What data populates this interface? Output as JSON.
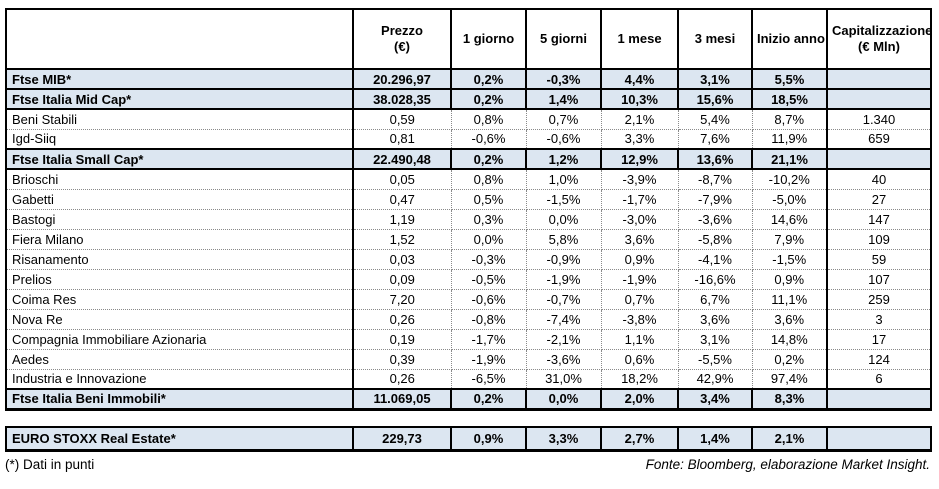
{
  "chart_data": {
    "type": "table",
    "title": "",
    "headers": [
      {
        "label": "Prezzo",
        "sub": "(€)"
      },
      {
        "label": "1 giorno",
        "sub": ""
      },
      {
        "label": "5 giorni",
        "sub": ""
      },
      {
        "label": "1 mese",
        "sub": ""
      },
      {
        "label": "3 mesi",
        "sub": ""
      },
      {
        "label": "Inizio anno",
        "sub": ""
      },
      {
        "label": "Capitalizzazione",
        "sub": "(€ Mln)"
      }
    ],
    "rows": [
      {
        "label": "Ftse MIB*",
        "style": "index",
        "values": [
          "20.296,97",
          "0,2%",
          "-0,3%",
          "4,4%",
          "3,1%",
          "5,5%",
          ""
        ]
      },
      {
        "label": "Ftse Italia Mid Cap*",
        "style": "index",
        "values": [
          "38.028,35",
          "0,2%",
          "1,4%",
          "10,3%",
          "15,6%",
          "18,5%",
          ""
        ]
      },
      {
        "label": "Beni Stabili",
        "style": "company",
        "values": [
          "0,59",
          "0,8%",
          "0,7%",
          "2,1%",
          "5,4%",
          "8,7%",
          "1.340"
        ]
      },
      {
        "label": "Igd-Siiq",
        "style": "company",
        "values": [
          "0,81",
          "-0,6%",
          "-0,6%",
          "3,3%",
          "7,6%",
          "11,9%",
          "659"
        ]
      },
      {
        "label": "Ftse Italia Small Cap*",
        "style": "index",
        "values": [
          "22.490,48",
          "0,2%",
          "1,2%",
          "12,9%",
          "13,6%",
          "21,1%",
          ""
        ]
      },
      {
        "label": "Brioschi",
        "style": "company",
        "values": [
          "0,05",
          "0,8%",
          "1,0%",
          "-3,9%",
          "-8,7%",
          "-10,2%",
          "40"
        ]
      },
      {
        "label": "Gabetti",
        "style": "company",
        "values": [
          "0,47",
          "0,5%",
          "-1,5%",
          "-1,7%",
          "-7,9%",
          "-5,0%",
          "27"
        ]
      },
      {
        "label": "Bastogi",
        "style": "company",
        "values": [
          "1,19",
          "0,3%",
          "0,0%",
          "-3,0%",
          "-3,6%",
          "14,6%",
          "147"
        ]
      },
      {
        "label": "Fiera Milano",
        "style": "company",
        "values": [
          "1,52",
          "0,0%",
          "5,8%",
          "3,6%",
          "-5,8%",
          "7,9%",
          "109"
        ]
      },
      {
        "label": "Risanamento",
        "style": "company",
        "values": [
          "0,03",
          "-0,3%",
          "-0,9%",
          "0,9%",
          "-4,1%",
          "-1,5%",
          "59"
        ]
      },
      {
        "label": "Prelios",
        "style": "company",
        "values": [
          "0,09",
          "-0,5%",
          "-1,9%",
          "-1,9%",
          "-16,6%",
          "0,9%",
          "107"
        ]
      },
      {
        "label": "Coima Res",
        "style": "company",
        "values": [
          "7,20",
          "-0,6%",
          "-0,7%",
          "0,7%",
          "6,7%",
          "11,1%",
          "259"
        ]
      },
      {
        "label": "Nova Re",
        "style": "company",
        "values": [
          "0,26",
          "-0,8%",
          "-7,4%",
          "-3,8%",
          "3,6%",
          "3,6%",
          "3"
        ]
      },
      {
        "label": "Compagnia Immobiliare Azionaria",
        "style": "company",
        "values": [
          "0,19",
          "-1,7%",
          "-2,1%",
          "1,1%",
          "3,1%",
          "14,8%",
          "17"
        ]
      },
      {
        "label": "Aedes",
        "style": "company",
        "values": [
          "0,39",
          "-1,9%",
          "-3,6%",
          "0,6%",
          "-5,5%",
          "0,2%",
          "124"
        ]
      },
      {
        "label": "Industria e Innovazione",
        "style": "company",
        "values": [
          "0,26",
          "-6,5%",
          "31,0%",
          "18,2%",
          "42,9%",
          "97,4%",
          "6"
        ]
      },
      {
        "label": "Ftse Italia Beni Immobili*",
        "style": "index",
        "values": [
          "11.069,05",
          "0,2%",
          "0,0%",
          "2,0%",
          "3,4%",
          "8,3%",
          ""
        ]
      }
    ],
    "separate_row": {
      "label": "EURO STOXX Real Estate*",
      "style": "index",
      "values": [
        "229,73",
        "0,9%",
        "3,3%",
        "2,7%",
        "1,4%",
        "2,1%",
        ""
      ]
    },
    "layout": {
      "highlight_color": "#dce6f1",
      "border_color": "#000000",
      "dotted_color": "#8a8a8a",
      "grid": "on"
    }
  },
  "footer": {
    "note": "(*) Dati in punti",
    "source": "Fonte: Bloomberg, elaborazione Market Insight."
  }
}
